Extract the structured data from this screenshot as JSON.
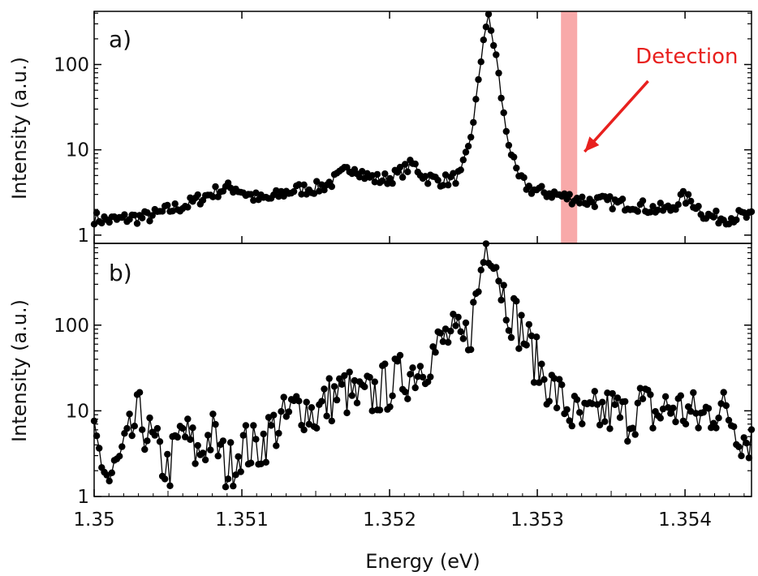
{
  "chart_data": [
    {
      "type": "scatter",
      "panel_label": "a)",
      "ylabel": "Intensity (a.u.)",
      "xlabel": "",
      "yscale": "log",
      "xlim": [
        1.35,
        1.35445
      ],
      "ylim": [
        0.8,
        420
      ],
      "ytick_values": [
        1,
        10,
        100
      ],
      "ytick_labels": [
        "1",
        "10",
        "100"
      ],
      "grid": false,
      "annotation": {
        "text": "Detection",
        "band": [
          1.35316,
          1.35327
        ],
        "band_color": "#f7a0a0",
        "arrow_from": [
          1.35375,
          64
        ],
        "arrow_to": [
          1.35332,
          9.5
        ]
      },
      "series": [
        {
          "name": "spectrum",
          "x": [
            1.35,
            1.35008,
            1.35016,
            1.35024,
            1.35032,
            1.3504,
            1.35048,
            1.35056,
            1.35064,
            1.35072,
            1.3508,
            1.35088,
            1.35096,
            1.35104,
            1.35112,
            1.3512,
            1.35128,
            1.35136,
            1.35144,
            1.35152,
            1.3516,
            1.35168,
            1.35176,
            1.35184,
            1.35192,
            1.352,
            1.35208,
            1.35216,
            1.35224,
            1.35232,
            1.3524,
            1.35248,
            1.35254,
            1.3526,
            1.35264,
            1.35267,
            1.35272,
            1.35278,
            1.35286,
            1.35294,
            1.35302,
            1.3531,
            1.35318,
            1.35326,
            1.35334,
            1.35342,
            1.3535,
            1.35358,
            1.35366,
            1.35374,
            1.35382,
            1.3539,
            1.35398,
            1.35406,
            1.35414,
            1.35422,
            1.3543,
            1.35438,
            1.35445
          ],
          "y": [
            1.6,
            1.5,
            1.5,
            1.6,
            1.6,
            1.7,
            1.9,
            2.1,
            2.3,
            2.7,
            3.1,
            3.5,
            3.6,
            3.0,
            2.6,
            2.7,
            3.1,
            3.4,
            3.5,
            3.6,
            4.1,
            5.2,
            6.5,
            4.9,
            4.5,
            4.6,
            5.5,
            6.8,
            4.8,
            4.4,
            4.4,
            5.0,
            11.0,
            55.0,
            250.0,
            340.0,
            130.0,
            20.0,
            5.0,
            3.6,
            3.2,
            3.1,
            2.8,
            2.7,
            2.5,
            2.5,
            2.4,
            2.3,
            2.3,
            2.1,
            2.0,
            2.0,
            2.8,
            2.4,
            1.7,
            1.6,
            1.6,
            1.7,
            1.6
          ]
        }
      ]
    },
    {
      "type": "scatter",
      "panel_label": "b)",
      "ylabel": "Intensity (a.u.)",
      "xlabel": "Energy (eV)",
      "yscale": "log",
      "xlim": [
        1.35,
        1.35445
      ],
      "ylim": [
        1,
        900
      ],
      "ytick_values": [
        1,
        10,
        100
      ],
      "ytick_labels": [
        "1",
        "10",
        "100"
      ],
      "xtick_values": [
        1.35,
        1.351,
        1.352,
        1.353,
        1.354
      ],
      "xtick_labels": [
        "1.35",
        "1.351",
        "1.352",
        "1.353",
        "1.354"
      ],
      "grid": false,
      "series": [
        {
          "name": "spectrum",
          "x": [
            1.35,
            1.3501,
            1.3502,
            1.3503,
            1.3504,
            1.3505,
            1.3506,
            1.3507,
            1.3508,
            1.3509,
            1.351,
            1.3511,
            1.3512,
            1.3513,
            1.3514,
            1.3515,
            1.3516,
            1.3517,
            1.3518,
            1.3519,
            1.352,
            1.3521,
            1.3522,
            1.3523,
            1.3524,
            1.3525,
            1.35255,
            1.3526,
            1.35265,
            1.3527,
            1.35275,
            1.3528,
            1.3529,
            1.353,
            1.3531,
            1.3532,
            1.3533,
            1.3534,
            1.3535,
            1.3536,
            1.3537,
            1.3538,
            1.3539,
            1.354,
            1.3541,
            1.3542,
            1.3543,
            1.3544
          ],
          "y": [
            5.0,
            1.5,
            3.0,
            9.0,
            4.0,
            2.0,
            6.0,
            3.0,
            5.5,
            2.0,
            4.0,
            3.5,
            6.0,
            8.0,
            12.0,
            9.0,
            14.0,
            17.0,
            13.0,
            16.0,
            20.0,
            25.0,
            33.0,
            48.0,
            75.0,
            60.0,
            95.0,
            260.0,
            900.0,
            900.0,
            320.0,
            170.0,
            85.0,
            35.0,
            18.0,
            11.0,
            7.0,
            9.0,
            10.0,
            8.0,
            12.0,
            9.0,
            11.0,
            10.0,
            8.0,
            11.0,
            9.0,
            5.0
          ]
        }
      ]
    }
  ]
}
